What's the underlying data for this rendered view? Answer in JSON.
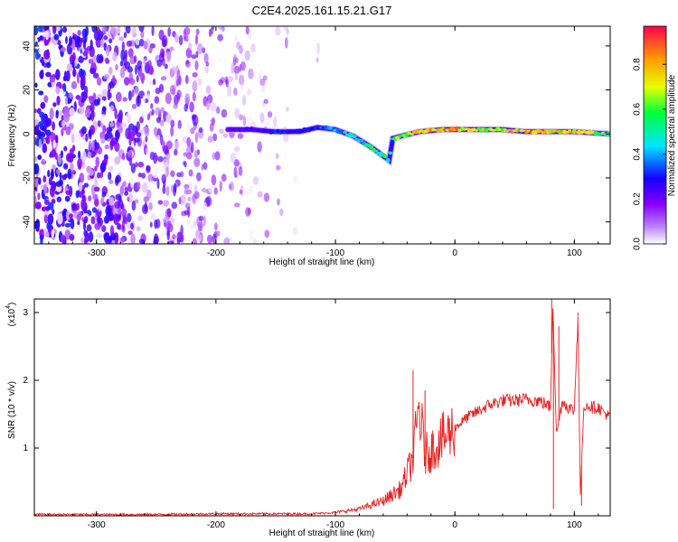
{
  "chart_data": [
    {
      "type": "heatmap",
      "title": "C2E4.2025.161.15.21.G17",
      "xlabel": "Height of straight line (km)",
      "ylabel": "Frequency (Hz)",
      "xlim": [
        -352,
        130
      ],
      "ylim": [
        -50,
        49
      ],
      "xticks": [
        "-300",
        "-200",
        "-100",
        "0",
        "100"
      ],
      "yticks": [
        "-40",
        "-20",
        "0",
        "20",
        "40"
      ],
      "colorbar": {
        "label": "Normalized spectral amplitude",
        "range": [
          0,
          0.97
        ],
        "ticks": [
          "0.0",
          "0.2",
          "0.4",
          "0.6",
          "0.8"
        ],
        "colors": [
          "#ffffff",
          "#8a00ff",
          "#1400ff",
          "#00e5ff",
          "#00ff3c",
          "#e5ff00",
          "#ff9a00",
          "#ff0050"
        ]
      },
      "noise_region_x": [
        -352,
        -100
      ],
      "trace": {
        "x": [
          -190,
          -170,
          -150,
          -130,
          -115,
          -100,
          -85,
          -70,
          -60,
          -55,
          -52,
          -45,
          -30,
          -10,
          0,
          20,
          40,
          60,
          80,
          100,
          130
        ],
        "y": [
          2,
          2,
          1,
          1,
          3,
          2,
          -1,
          -6,
          -10,
          -12,
          -2,
          -1,
          1,
          2,
          2,
          2,
          2,
          1,
          1,
          1,
          0
        ],
        "amplitude": [
          0.2,
          0.25,
          0.3,
          0.3,
          0.35,
          0.4,
          0.45,
          0.55,
          0.6,
          0.5,
          0.6,
          0.7,
          0.8,
          0.85,
          0.9,
          0.7,
          0.75,
          0.95,
          0.8,
          0.85,
          0.6
        ]
      }
    },
    {
      "type": "line",
      "xlabel": "Height of straight line (km)",
      "ylabel": "SNR (10 * v/v)",
      "scale_label": "(x10",
      "scale_exp": "4",
      "xlim": [
        -352,
        130
      ],
      "ylim": [
        0,
        3.2
      ],
      "xticks": [
        "-300",
        "-200",
        "-100",
        "0",
        "100"
      ],
      "yticks": [
        "1",
        "2",
        "3"
      ],
      "series": [
        {
          "color": "#e8201e",
          "x": [
            -352,
            -300,
            -250,
            -200,
            -150,
            -120,
            -100,
            -80,
            -60,
            -45,
            -35,
            -30,
            -25,
            -15,
            0,
            10,
            20,
            30,
            40,
            50,
            60,
            70,
            75,
            80,
            82,
            85,
            90,
            95,
            100,
            103,
            105,
            108,
            110,
            115,
            120,
            130
          ],
          "y": [
            0.02,
            0.02,
            0.02,
            0.03,
            0.03,
            0.03,
            0.05,
            0.1,
            0.22,
            0.4,
            0.85,
            1.6,
            0.9,
            1.05,
            1.3,
            1.45,
            1.55,
            1.65,
            1.7,
            1.7,
            1.72,
            1.7,
            1.66,
            1.6,
            3.2,
            1.2,
            1.7,
            1.6,
            1.55,
            3.0,
            0.3,
            1.6,
            1.65,
            1.6,
            1.6,
            1.45
          ]
        }
      ],
      "spikes": [
        {
          "x": -35,
          "y": 2.15
        },
        {
          "x": -25,
          "y": 1.85
        },
        {
          "x": 81,
          "y": 3.2
        },
        {
          "x": 82.5,
          "y": 0.1
        },
        {
          "x": 87,
          "y": 2.8
        },
        {
          "x": 103,
          "y": 2.95
        },
        {
          "x": 106,
          "y": 0.15
        }
      ]
    }
  ]
}
